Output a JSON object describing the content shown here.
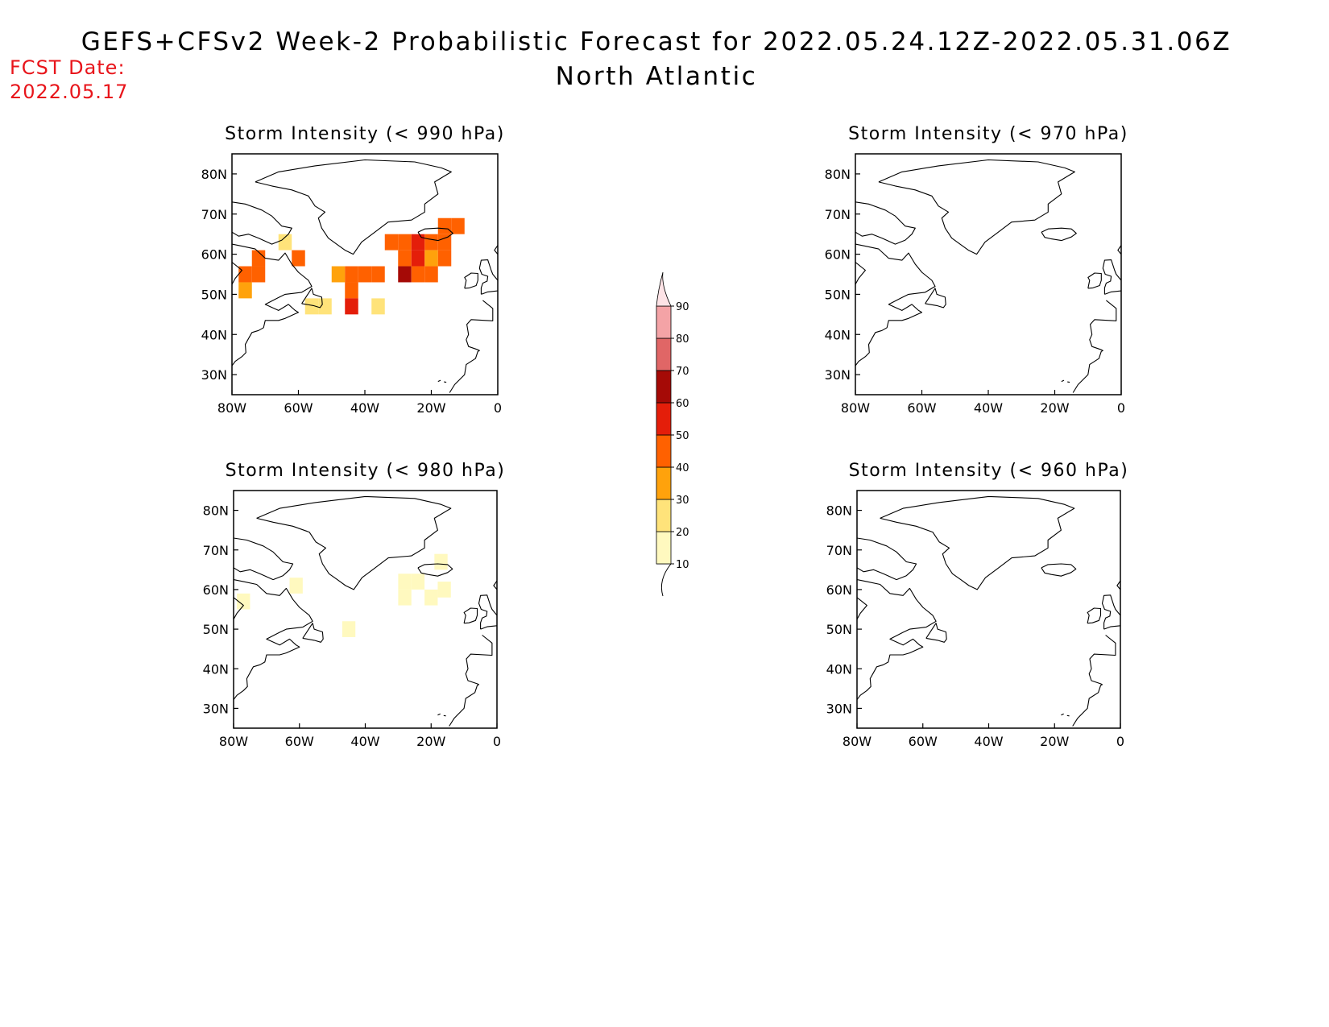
{
  "header": {
    "title": "GEFS+CFSv2 Week-2 Probabilistic Forecast for 2022.05.24.12Z-2022.05.31.06Z",
    "subtitle": "North Atlantic",
    "fcst_label": "FCST Date:",
    "fcst_date": "2022.05.17"
  },
  "axes": {
    "lon_ticks": [
      {
        "lon": -80,
        "label": "80W"
      },
      {
        "lon": -60,
        "label": "60W"
      },
      {
        "lon": -40,
        "label": "40W"
      },
      {
        "lon": -20,
        "label": "20W"
      },
      {
        "lon": 0,
        "label": "0"
      }
    ],
    "lat_ticks": [
      {
        "lat": 80,
        "label": "80N"
      },
      {
        "lat": 70,
        "label": "70N"
      },
      {
        "lat": 60,
        "label": "60N"
      },
      {
        "lat": 50,
        "label": "50N"
      },
      {
        "lat": 40,
        "label": "40N"
      },
      {
        "lat": 30,
        "label": "30N"
      }
    ],
    "lon_range": [
      -80,
      0
    ],
    "lat_range": [
      25,
      85
    ]
  },
  "colorbar": {
    "levels": [
      {
        "label": "10",
        "color": "#fff9bf"
      },
      {
        "label": "20",
        "color": "#ffe37a"
      },
      {
        "label": "30",
        "color": "#ffa20c"
      },
      {
        "label": "40",
        "color": "#ff6100"
      },
      {
        "label": "50",
        "color": "#e41e0a"
      },
      {
        "label": "60",
        "color": "#a50a06"
      },
      {
        "label": "70",
        "color": "#e06666"
      },
      {
        "label": "80",
        "color": "#f4a3a6"
      },
      {
        "label": "90",
        "color": "#fde3e6"
      }
    ],
    "under_color": "#ffffff"
  },
  "panels": [
    {
      "title": "Storm Intensity (< 990 hPa)",
      "cells": [
        {
          "lon": -76,
          "lat": 55,
          "level": 3
        },
        {
          "lon": -72,
          "lat": 55,
          "level": 3
        },
        {
          "lon": -76,
          "lat": 51,
          "level": 2
        },
        {
          "lon": -72,
          "lat": 59,
          "level": 3
        },
        {
          "lon": -64,
          "lat": 63,
          "level": 1
        },
        {
          "lon": -60,
          "lat": 59,
          "level": 3
        },
        {
          "lon": -56,
          "lat": 47,
          "level": 1
        },
        {
          "lon": -52,
          "lat": 47,
          "level": 1
        },
        {
          "lon": -48,
          "lat": 55,
          "level": 2
        },
        {
          "lon": -44,
          "lat": 55,
          "level": 3
        },
        {
          "lon": -40,
          "lat": 55,
          "level": 3
        },
        {
          "lon": -36,
          "lat": 55,
          "level": 3
        },
        {
          "lon": -44,
          "lat": 51,
          "level": 3
        },
        {
          "lon": -44,
          "lat": 47,
          "level": 4
        },
        {
          "lon": -36,
          "lat": 47,
          "level": 1
        },
        {
          "lon": -32,
          "lat": 63,
          "level": 3
        },
        {
          "lon": -28,
          "lat": 63,
          "level": 3
        },
        {
          "lon": -24,
          "lat": 63,
          "level": 4
        },
        {
          "lon": -20,
          "lat": 63,
          "level": 3
        },
        {
          "lon": -16,
          "lat": 63,
          "level": 3
        },
        {
          "lon": -12,
          "lat": 67,
          "level": 3
        },
        {
          "lon": -16,
          "lat": 67,
          "level": 3
        },
        {
          "lon": -28,
          "lat": 59,
          "level": 3
        },
        {
          "lon": -24,
          "lat": 59,
          "level": 4
        },
        {
          "lon": -20,
          "lat": 59,
          "level": 2
        },
        {
          "lon": -16,
          "lat": 59,
          "level": 3
        },
        {
          "lon": -28,
          "lat": 55,
          "level": 5
        },
        {
          "lon": -24,
          "lat": 55,
          "level": 3
        },
        {
          "lon": -20,
          "lat": 55,
          "level": 3
        }
      ]
    },
    {
      "title": "Storm Intensity (< 970 hPa)",
      "cells": []
    },
    {
      "title": "Storm Intensity (< 980 hPa)",
      "cells": [
        {
          "lon": -77,
          "lat": 57,
          "level": 0
        },
        {
          "lon": -61,
          "lat": 61,
          "level": 0
        },
        {
          "lon": -45,
          "lat": 50,
          "level": 0
        },
        {
          "lon": -28,
          "lat": 62,
          "level": 0
        },
        {
          "lon": -24,
          "lat": 62,
          "level": 0
        },
        {
          "lon": -28,
          "lat": 58,
          "level": 0
        },
        {
          "lon": -20,
          "lat": 58,
          "level": 0
        },
        {
          "lon": -16,
          "lat": 60,
          "level": 0
        },
        {
          "lon": -17,
          "lat": 67,
          "level": 0
        }
      ]
    },
    {
      "title": "Storm Intensity (< 960 hPa)",
      "cells": []
    }
  ]
}
